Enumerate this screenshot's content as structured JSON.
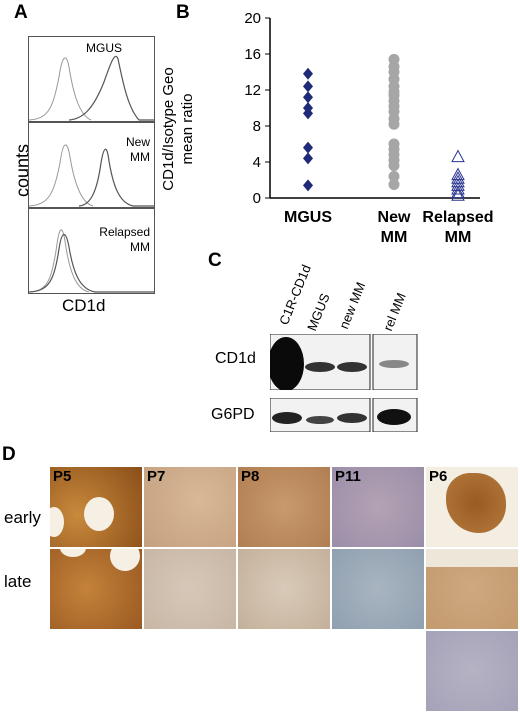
{
  "panels": {
    "A": "A",
    "B": "B",
    "C": "C",
    "D": "D"
  },
  "panel_a": {
    "ylabel": "counts",
    "xlabel": "CD1d",
    "histograms": [
      {
        "label_line1": "MGUS",
        "label_line2": ""
      },
      {
        "label_line1": "New",
        "label_line2": "MM"
      },
      {
        "label_line1": "Relapsed",
        "label_line2": "MM"
      }
    ]
  },
  "chart_data": {
    "type": "scatter",
    "ylabel": "CD1d/Isotype Geo mean ratio",
    "ylabel_line1": "CD1d/Isotype Geo",
    "ylabel_line2": "mean ratio",
    "ylim": [
      0,
      20
    ],
    "yticks": [
      "0",
      "4",
      "8",
      "12",
      "16",
      "20"
    ],
    "categories": [
      "MGUS",
      "New MM",
      "Relapsed MM"
    ],
    "category_labels": [
      {
        "line1": "MGUS",
        "line2": ""
      },
      {
        "line1": "New",
        "line2": "MM"
      },
      {
        "line1": "Relapsed",
        "line2": "MM"
      }
    ],
    "series": [
      {
        "category": "MGUS",
        "marker": "diamond",
        "color": "#1f2a78",
        "values": [
          13.8,
          12.4,
          11.2,
          10.0,
          9.4,
          5.6,
          4.4,
          1.4
        ]
      },
      {
        "category": "New MM",
        "marker": "circle",
        "color": "#a6a6a6",
        "values": [
          15.4,
          14.6,
          14.0,
          13.2,
          12.4,
          11.8,
          11.4,
          10.8,
          10.2,
          9.6,
          8.8,
          8.2,
          6.0,
          5.4,
          4.8,
          4.2,
          3.6,
          2.4,
          1.5
        ]
      },
      {
        "category": "Relapsed MM",
        "marker": "triangle-open",
        "color": "#2b3590",
        "values": [
          4.6,
          2.6,
          2.2,
          1.8,
          1.4,
          1.0,
          0.6,
          0.3
        ]
      }
    ]
  },
  "panel_c": {
    "lanes": [
      "C1R-CD1d",
      "MGUS",
      "new MM",
      "rel MM"
    ],
    "rows": [
      "CD1d",
      "G6PD"
    ]
  },
  "panel_d": {
    "rows": [
      "early",
      "late"
    ],
    "patients": [
      "P5",
      "P7",
      "P8",
      "P11",
      "P6"
    ]
  }
}
